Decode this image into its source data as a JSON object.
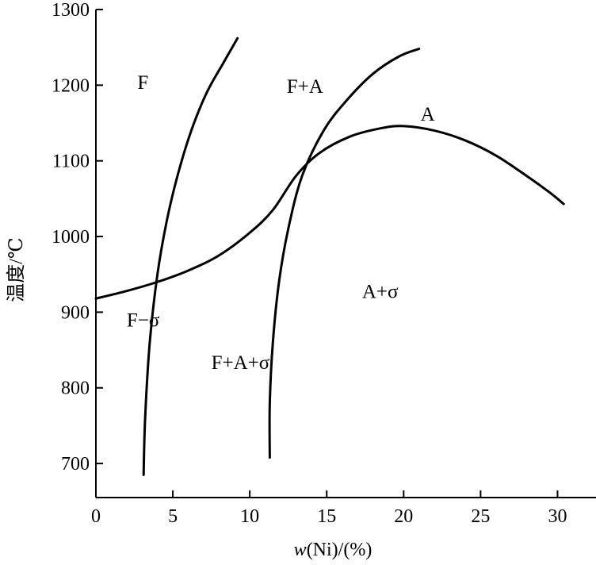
{
  "chart_data": {
    "type": "line",
    "xlabel_italic": "w",
    "xlabel_rest": "(Ni)/(%)",
    "ylabel": "温度/℃",
    "xlim": [
      0,
      32.5
    ],
    "ylim": [
      655,
      1300
    ],
    "x_ticks": [
      0,
      5,
      10,
      15,
      20,
      25,
      30
    ],
    "y_ticks": [
      700,
      800,
      900,
      1000,
      1100,
      1200,
      1300
    ],
    "grid": false,
    "series": [
      {
        "id": "f-boundary",
        "points": [
          [
            3.1,
            685
          ],
          [
            3.2,
            760
          ],
          [
            3.5,
            860
          ],
          [
            4.0,
            950
          ],
          [
            4.6,
            1020
          ],
          [
            5.3,
            1080
          ],
          [
            6.2,
            1140
          ],
          [
            7.2,
            1190
          ],
          [
            8.3,
            1230
          ],
          [
            9.2,
            1262
          ]
        ]
      },
      {
        "id": "a-sigma-boundary",
        "points": [
          [
            11.3,
            708
          ],
          [
            11.3,
            780
          ],
          [
            11.5,
            860
          ],
          [
            11.9,
            940
          ],
          [
            12.5,
            1010
          ],
          [
            13.4,
            1080
          ],
          [
            14.8,
            1140
          ],
          [
            16.3,
            1180
          ],
          [
            18.0,
            1215
          ],
          [
            19.7,
            1238
          ],
          [
            21.0,
            1248
          ]
        ]
      },
      {
        "id": "sigma-solvus",
        "points": [
          [
            0,
            918
          ],
          [
            2.0,
            928
          ],
          [
            4.0,
            940
          ],
          [
            6.0,
            955
          ],
          [
            8.0,
            975
          ],
          [
            10.0,
            1005
          ],
          [
            11.5,
            1035
          ],
          [
            13.0,
            1080
          ],
          [
            14.5,
            1110
          ],
          [
            16.5,
            1132
          ],
          [
            18.5,
            1143
          ],
          [
            20.0,
            1146
          ],
          [
            22.0,
            1140
          ],
          [
            24.0,
            1127
          ],
          [
            26.0,
            1107
          ],
          [
            28.0,
            1080
          ],
          [
            29.5,
            1058
          ],
          [
            30.4,
            1043
          ]
        ]
      }
    ],
    "annotations": [
      {
        "id": "label-f",
        "text": "F",
        "x": 2.7,
        "y": 1195
      },
      {
        "id": "label-fa",
        "text": "F+A",
        "x": 12.4,
        "y": 1190
      },
      {
        "id": "label-a",
        "text": "A",
        "x": 21.1,
        "y": 1153
      },
      {
        "id": "label-asigma",
        "text": "A+σ",
        "x": 17.3,
        "y": 919
      },
      {
        "id": "label-fsigma",
        "text": "F−σ",
        "x": 2.0,
        "y": 881
      },
      {
        "id": "label-fasigma",
        "text": "F+A+σ",
        "x": 7.5,
        "y": 825
      }
    ]
  }
}
